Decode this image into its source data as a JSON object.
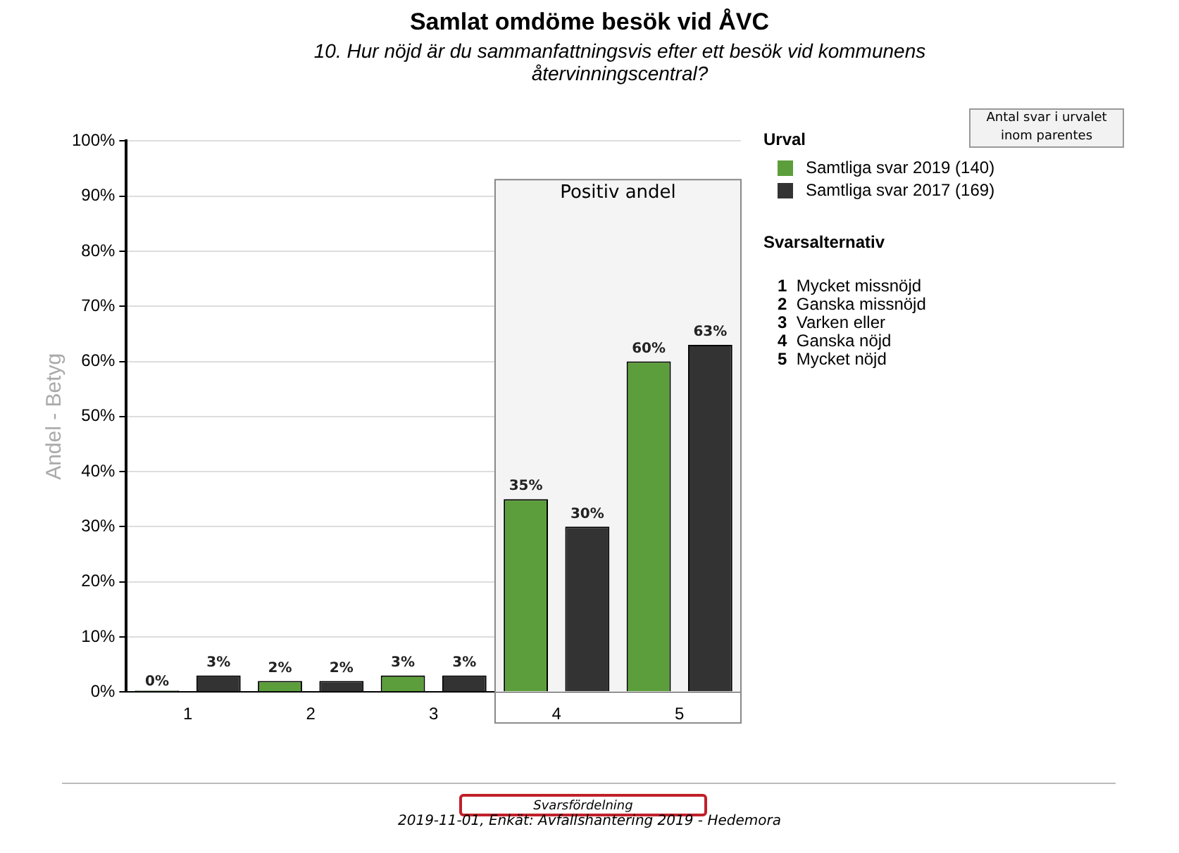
{
  "chart_data": {
    "type": "bar",
    "title": "Samlat omdöme besök vid ÅVC",
    "subtitle": "10. Hur nöjd är du sammanfattningsvis efter ett besök vid kommunens återvinningscentral?",
    "ylabel": "Andel - Betyg",
    "legend_title": "Urval",
    "categories": [
      "1",
      "2",
      "3",
      "4",
      "5"
    ],
    "series": [
      {
        "name": "Samtliga svar 2019 (140)",
        "color": "#5c9e3b",
        "values": [
          0,
          2,
          3,
          35,
          60
        ],
        "value_labels": [
          "0%",
          "2%",
          "3%",
          "35%",
          "60%"
        ]
      },
      {
        "name": "Samtliga svar 2017 (169)",
        "color": "#333333",
        "values": [
          3,
          2,
          3,
          30,
          63
        ],
        "value_labels": [
          "3%",
          "2%",
          "3%",
          "30%",
          "63%"
        ]
      }
    ],
    "ylim": [
      0,
      100
    ],
    "yticks": [
      {
        "value": 0,
        "label": "0%"
      },
      {
        "value": 10,
        "label": "10%"
      },
      {
        "value": 20,
        "label": "20%"
      },
      {
        "value": 30,
        "label": "30%"
      },
      {
        "value": 40,
        "label": "40%"
      },
      {
        "value": 50,
        "label": "50%"
      },
      {
        "value": 60,
        "label": "60%"
      },
      {
        "value": 70,
        "label": "70%"
      },
      {
        "value": 80,
        "label": "80%"
      },
      {
        "value": 90,
        "label": "90%"
      },
      {
        "value": 100,
        "label": "100%"
      }
    ],
    "grid": "y",
    "legend": "right",
    "bands": [
      {
        "axis": "x",
        "from": "4",
        "to": "5",
        "label": "Positiv andel",
        "color": "#f4f4f4"
      }
    ],
    "annotations": [
      "Antal svar i urvalet inom parentes",
      "Svarsalternativ",
      "1 Mycket missnöjd",
      "2 Ganska missnöjd",
      "3 Varken eller",
      "4 Ganska nöjd",
      "5 Mycket nöjd",
      "Svarsfördelning",
      "2019-11-01, Enkät: Avfallshantering 2019 - Hedemora"
    ]
  }
}
